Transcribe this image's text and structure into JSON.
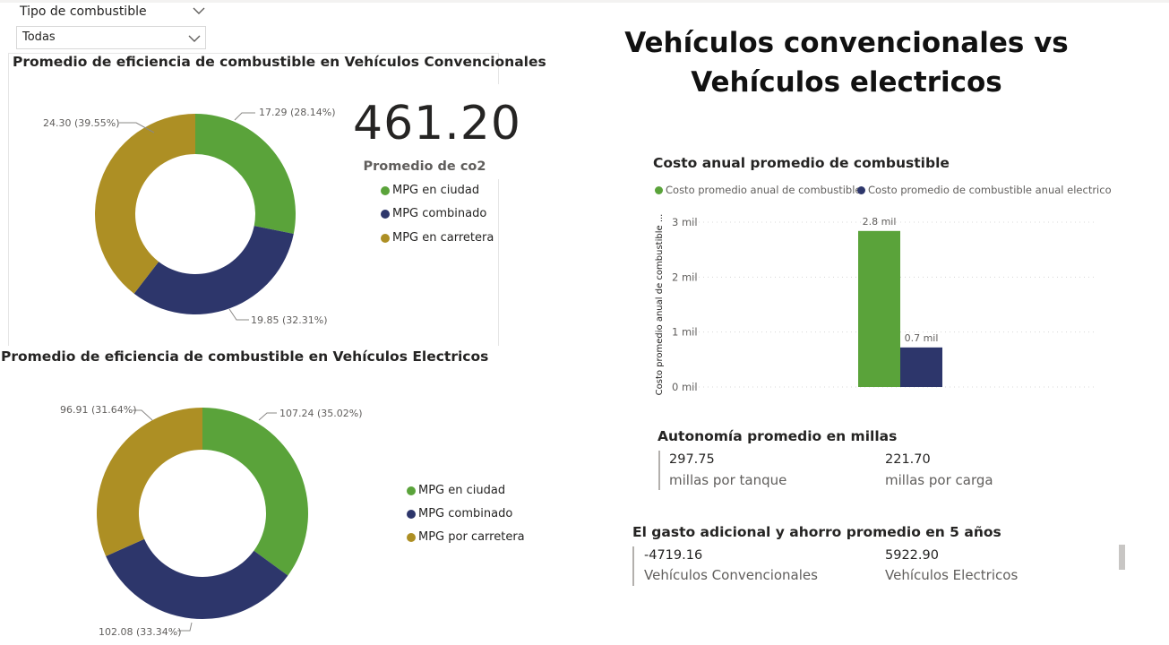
{
  "slicer": {
    "title": "Tipo de combustible",
    "value": "Todas"
  },
  "main_title": {
    "line1": "Vehículos convencionales vs",
    "line2": "Vehículos electricos"
  },
  "kpi": {
    "value": "461.20",
    "label": "Promedio de co2"
  },
  "cards": {
    "autonomy": {
      "title": "Autonomía promedio en millas",
      "items": [
        {
          "value": "297.75",
          "label": "millas por tanque"
        },
        {
          "value": "221.70",
          "label": "millas por carga"
        }
      ]
    },
    "savings": {
      "title": "El gasto adicional y ahorro promedio en 5 años",
      "items": [
        {
          "value": "-4719.16",
          "label": "Vehículos Convencionales"
        },
        {
          "value": "5922.90",
          "label": "Vehículos Electricos"
        }
      ]
    }
  },
  "colors": {
    "green": "#5aa33a",
    "navy": "#2d366b",
    "gold": "#ad8f24"
  },
  "chart_data": [
    {
      "type": "pie",
      "variant": "donut",
      "title": "Promedio de eficiencia de combustible en Vehículos Convencionales",
      "categories": [
        "MPG en ciudad",
        "MPG combinado",
        "MPG en carretera"
      ],
      "values": [
        17.29,
        19.85,
        24.3
      ],
      "data_labels": [
        "17.29 (28.14%)",
        "19.85 (32.31%)",
        "24.30 (39.55%)"
      ],
      "legend": "right"
    },
    {
      "type": "pie",
      "variant": "donut",
      "title": "Promedio de eficiencia de combustible en Vehículos Electricos",
      "categories": [
        "MPG en ciudad",
        "MPG combinado",
        "MPG por carretera"
      ],
      "values": [
        107.24,
        102.08,
        96.91
      ],
      "data_labels": [
        "107.24 (35.02%)",
        "102.08 (33.34%)",
        "96.91 (31.64%)"
      ],
      "legend": "right"
    },
    {
      "type": "bar",
      "title": "Costo anual promedio de combustible",
      "ylabel": "Costo promedio anual de combustible ...",
      "ylim": [
        0,
        3000
      ],
      "yticks": [
        0,
        1000,
        2000,
        3000
      ],
      "ytick_labels": [
        "0 mil",
        "1 mil",
        "2 mil",
        "3 mil"
      ],
      "series": [
        {
          "name": "Costo promedio anual de combustible",
          "values": [
            2840
          ],
          "data_label": "2.8 mil"
        },
        {
          "name": "Costo promedio de combustible anual electrico",
          "values": [
            720
          ],
          "data_label": "0.7 mil"
        }
      ],
      "legend": "top-left",
      "grid": true
    }
  ]
}
